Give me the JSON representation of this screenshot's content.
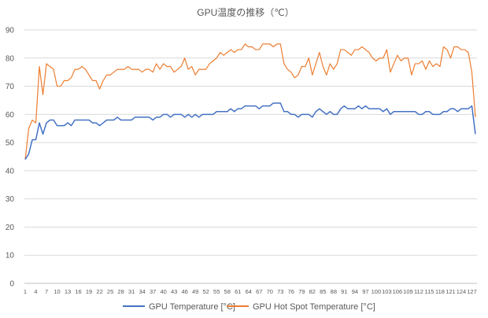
{
  "chart_data": {
    "type": "line",
    "title": "GPU温度の推移（℃）",
    "xlabel": "",
    "ylabel": "",
    "ylim": [
      0,
      90
    ],
    "yticks": [
      0,
      10,
      20,
      30,
      40,
      50,
      60,
      70,
      80,
      90
    ],
    "x": [
      1,
      2,
      3,
      4,
      5,
      6,
      7,
      8,
      9,
      10,
      11,
      12,
      13,
      14,
      15,
      16,
      17,
      18,
      19,
      20,
      21,
      22,
      23,
      24,
      25,
      26,
      27,
      28,
      29,
      30,
      31,
      32,
      33,
      34,
      35,
      36,
      37,
      38,
      39,
      40,
      41,
      42,
      43,
      44,
      45,
      46,
      47,
      48,
      49,
      50,
      51,
      52,
      53,
      54,
      55,
      56,
      57,
      58,
      59,
      60,
      61,
      62,
      63,
      64,
      65,
      66,
      67,
      68,
      69,
      70,
      71,
      72,
      73,
      74,
      75,
      76,
      77,
      78,
      79,
      80,
      81,
      82,
      83,
      84,
      85,
      86,
      87,
      88,
      89,
      90,
      91,
      92,
      93,
      94,
      95,
      96,
      97,
      98,
      99,
      100,
      101,
      102,
      103,
      104,
      105,
      106,
      107,
      108,
      109,
      110,
      111,
      112,
      113,
      114,
      115,
      116,
      117,
      118,
      119,
      120,
      121,
      122,
      123,
      124,
      125,
      126,
      127,
      128
    ],
    "xticks": [
      1,
      4,
      7,
      10,
      13,
      16,
      19,
      22,
      25,
      28,
      31,
      34,
      37,
      40,
      43,
      46,
      49,
      52,
      55,
      58,
      61,
      64,
      67,
      70,
      73,
      76,
      79,
      82,
      85,
      88,
      91,
      94,
      97,
      100,
      103,
      106,
      109,
      112,
      115,
      118,
      121,
      124,
      127
    ],
    "grid": true,
    "legend_position": "bottom",
    "series": [
      {
        "name": "GPU Temperature [°C]",
        "color": "#4472c4",
        "values": [
          44,
          46,
          51,
          51,
          57,
          53,
          57,
          58,
          58,
          56,
          56,
          56,
          57,
          56,
          58,
          58,
          58,
          58,
          58,
          57,
          57,
          56,
          57,
          58,
          58,
          58,
          59,
          58,
          58,
          58,
          58,
          59,
          59,
          59,
          59,
          59,
          58,
          59,
          59,
          60,
          60,
          59,
          60,
          60,
          60,
          59,
          60,
          59,
          60,
          59,
          60,
          60,
          60,
          60,
          61,
          61,
          61,
          61,
          62,
          61,
          62,
          62,
          63,
          63,
          63,
          63,
          62,
          63,
          63,
          63,
          64,
          64,
          64,
          61,
          61,
          60,
          60,
          59,
          60,
          60,
          60,
          59,
          61,
          62,
          61,
          60,
          61,
          60,
          60,
          62,
          63,
          62,
          62,
          62,
          63,
          62,
          63,
          62,
          62,
          62,
          62,
          61,
          62,
          60,
          61,
          61,
          61,
          61,
          61,
          61,
          61,
          60,
          60,
          61,
          61,
          60,
          60,
          60,
          61,
          61,
          62,
          62,
          61,
          62,
          62,
          62,
          63,
          53
        ]
      },
      {
        "name": "GPU Hot Spot Temperature [°C]",
        "color": "#ed7d31",
        "values": [
          44,
          55,
          58,
          57,
          77,
          67,
          78,
          77,
          76,
          70,
          70,
          72,
          72,
          73,
          76,
          76,
          77,
          76,
          74,
          72,
          72,
          69,
          72,
          74,
          74,
          75,
          76,
          76,
          76,
          77,
          76,
          76,
          76,
          75,
          76,
          76,
          75,
          78,
          76,
          78,
          77,
          77,
          75,
          76,
          77,
          80,
          76,
          77,
          74,
          76,
          76,
          76,
          78,
          79,
          80,
          82,
          81,
          82,
          83,
          82,
          83,
          83,
          85,
          84,
          84,
          83,
          83,
          85,
          85,
          85,
          84,
          85,
          85,
          78,
          76,
          75,
          73,
          74,
          77,
          77,
          80,
          74,
          78,
          82,
          77,
          74,
          78,
          76,
          78,
          83,
          83,
          82,
          81,
          83,
          83,
          84,
          83,
          82,
          80,
          79,
          80,
          80,
          83,
          75,
          78,
          81,
          79,
          80,
          80,
          74,
          78,
          78,
          79,
          76,
          79,
          77,
          78,
          77,
          84,
          83,
          80,
          84,
          84,
          83,
          83,
          82,
          75,
          59
        ]
      }
    ]
  }
}
